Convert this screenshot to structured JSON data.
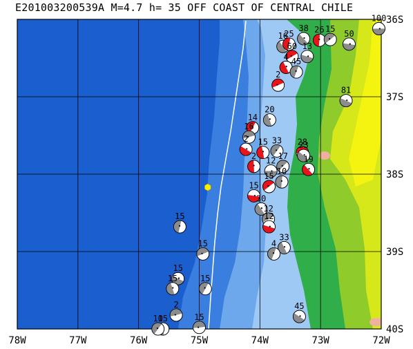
{
  "title": "E201003200539A M=4.7 h= 35 OFF COAST OF CENTRAL CHILE",
  "lon_labels": [
    "78W",
    "77W",
    "76W",
    "75W",
    "74W",
    "73W",
    "72W"
  ],
  "lat_labels": [
    "36S",
    "37S",
    "38S",
    "39S",
    "40S"
  ],
  "bounds": {
    "lon_min": -78,
    "lon_max": -72,
    "lat_max": -36,
    "lat_min": -40
  },
  "colors": {
    "deep_ocean": "#1b5fcf",
    "mid_ocean": "#3a7fe0",
    "shelf": "#6ea8ec",
    "coastal_shelf": "#9ec9f5",
    "lowland": "#2fae4a",
    "upland": "#8fcb2a",
    "highland": "#d6e81a",
    "peak": "#f4f410",
    "summit": "#f0b0a0",
    "trench_line": "#ffffff",
    "focal_red": "#e8141c",
    "focal_gray": "#8c8c8c",
    "main_event": "#ffee00"
  },
  "main_event": {
    "lon": -74.86,
    "lat": -38.17,
    "icon": "hexagon-icon"
  },
  "mechanisms": [
    {
      "lon": -72.04,
      "lat": -36.12,
      "depth": "100",
      "fill": "gray"
    },
    {
      "lon": -73.28,
      "lat": -36.25,
      "depth": "38",
      "fill": "gray"
    },
    {
      "lon": -73.02,
      "lat": -36.27,
      "depth": "26",
      "fill": "red"
    },
    {
      "lon": -72.84,
      "lat": -36.26,
      "depth": "15",
      "fill": "gray"
    },
    {
      "lon": -72.53,
      "lat": -36.32,
      "depth": "50",
      "fill": "gray"
    },
    {
      "lon": -73.62,
      "lat": -36.35,
      "depth": "16",
      "fill": "gray"
    },
    {
      "lon": -73.52,
      "lat": -36.32,
      "depth": "25",
      "fill": "red"
    },
    {
      "lon": -73.47,
      "lat": -36.48,
      "depth": "60",
      "fill": "red"
    },
    {
      "lon": -73.22,
      "lat": -36.48,
      "depth": "13",
      "fill": "gray"
    },
    {
      "lon": -73.57,
      "lat": -36.62,
      "depth": "4",
      "fill": "red"
    },
    {
      "lon": -73.4,
      "lat": -36.68,
      "depth": "45",
      "fill": "gray"
    },
    {
      "lon": -73.7,
      "lat": -36.85,
      "depth": "2",
      "fill": "red"
    },
    {
      "lon": -72.58,
      "lat": -37.05,
      "depth": "81",
      "fill": "gray"
    },
    {
      "lon": -73.84,
      "lat": -37.3,
      "depth": "20",
      "fill": "gray"
    },
    {
      "lon": -74.12,
      "lat": -37.4,
      "depth": "14",
      "fill": "red"
    },
    {
      "lon": -74.18,
      "lat": -37.52,
      "depth": "16",
      "fill": "gray"
    },
    {
      "lon": -74.23,
      "lat": -37.68,
      "depth": "2",
      "fill": "red"
    },
    {
      "lon": -73.95,
      "lat": -37.72,
      "depth": "15",
      "fill": "red"
    },
    {
      "lon": -73.72,
      "lat": -37.7,
      "depth": "33",
      "fill": "gray"
    },
    {
      "lon": -73.3,
      "lat": -37.72,
      "depth": "28",
      "fill": "red"
    },
    {
      "lon": -73.28,
      "lat": -37.76,
      "depth": "23",
      "fill": "gray"
    },
    {
      "lon": -74.1,
      "lat": -37.9,
      "depth": "2",
      "fill": "red"
    },
    {
      "lon": -73.62,
      "lat": -37.9,
      "depth": "17",
      "fill": "gray"
    },
    {
      "lon": -73.82,
      "lat": -37.96,
      "depth": "12",
      "fill": "gray"
    },
    {
      "lon": -73.2,
      "lat": -37.94,
      "depth": "19",
      "fill": "red"
    },
    {
      "lon": -73.64,
      "lat": -38.1,
      "depth": "10",
      "fill": "gray"
    },
    {
      "lon": -73.85,
      "lat": -38.16,
      "depth": "15",
      "fill": "red"
    },
    {
      "lon": -74.1,
      "lat": -38.28,
      "depth": "15",
      "fill": "red"
    },
    {
      "lon": -73.98,
      "lat": -38.45,
      "depth": "30",
      "fill": "gray"
    },
    {
      "lon": -75.32,
      "lat": -38.68,
      "depth": "15",
      "fill": "gray"
    },
    {
      "lon": -73.86,
      "lat": -38.58,
      "depth": "12",
      "fill": "gray"
    },
    {
      "lon": -73.85,
      "lat": -38.68,
      "depth": "12",
      "fill": "red"
    },
    {
      "lon": -73.6,
      "lat": -38.95,
      "depth": "33",
      "fill": "gray"
    },
    {
      "lon": -73.77,
      "lat": -39.03,
      "depth": "4",
      "fill": "gray"
    },
    {
      "lon": -74.94,
      "lat": -39.03,
      "depth": "15",
      "fill": "gray"
    },
    {
      "lon": -75.35,
      "lat": -39.35,
      "depth": "15",
      "fill": "gray"
    },
    {
      "lon": -75.44,
      "lat": -39.48,
      "depth": "15",
      "fill": "gray"
    },
    {
      "lon": -74.9,
      "lat": -39.48,
      "depth": "15",
      "fill": "gray"
    },
    {
      "lon": -75.38,
      "lat": -39.82,
      "depth": "2",
      "fill": "gray"
    },
    {
      "lon": -73.35,
      "lat": -39.84,
      "depth": "45",
      "fill": "gray"
    },
    {
      "lon": -75.6,
      "lat": -40.0,
      "depth": "15",
      "fill": "gray"
    },
    {
      "lon": -75.68,
      "lat": -40.0,
      "depth": "10",
      "fill": "gray"
    },
    {
      "lon": -75.0,
      "lat": -39.98,
      "depth": "15",
      "fill": "gray"
    }
  ]
}
